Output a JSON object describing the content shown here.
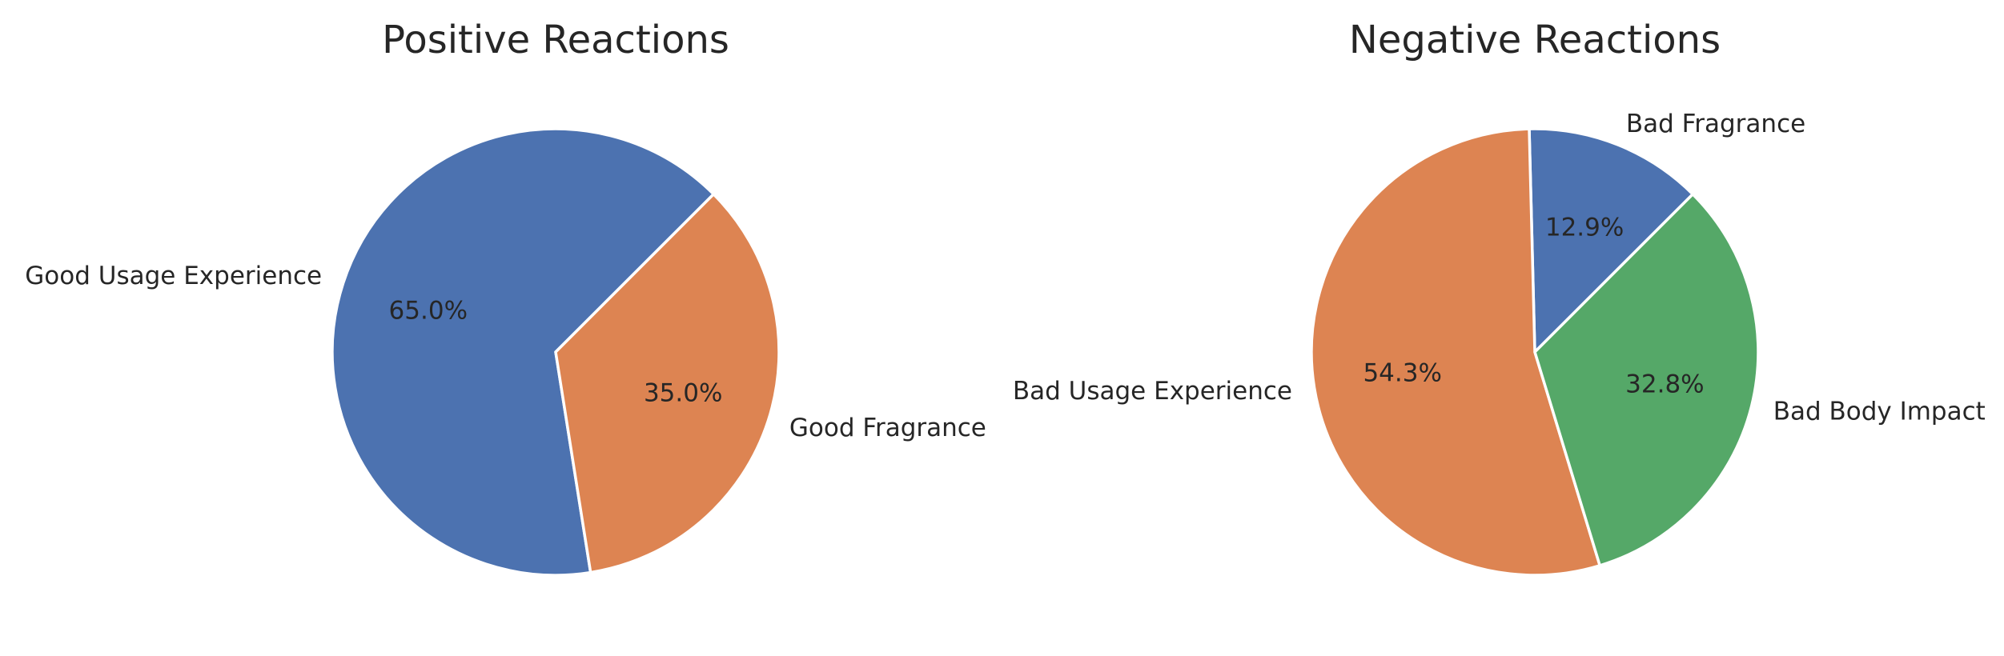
{
  "chart_data": [
    {
      "type": "pie",
      "title": "Positive Reactions",
      "labels": [
        "Good Usage Experience",
        "Good Fragrance"
      ],
      "values": [
        65.0,
        35.0
      ],
      "value_labels": [
        "65.0%",
        "35.0%"
      ],
      "colors": [
        "#4c72b0",
        "#dd8452"
      ],
      "start_angle_deg": 45,
      "direction": "counterclockwise"
    },
    {
      "type": "pie",
      "title": "Negative Reactions",
      "labels": [
        "Bad Fragrance",
        "Bad Usage Experience",
        "Bad Body Impact"
      ],
      "values": [
        12.9,
        54.3,
        32.8
      ],
      "value_labels": [
        "12.9%",
        "54.3%",
        "32.8%"
      ],
      "colors": [
        "#4c72b0",
        "#dd8452",
        "#55a868"
      ],
      "start_angle_deg": 45,
      "direction": "counterclockwise"
    }
  ]
}
